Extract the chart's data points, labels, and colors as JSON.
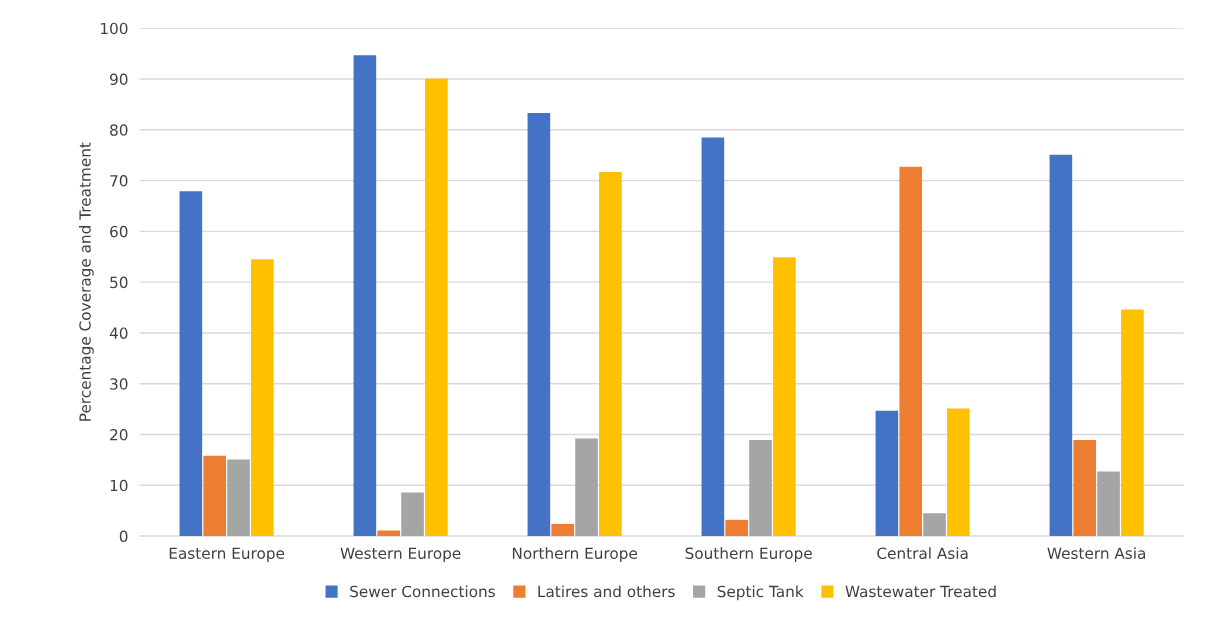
{
  "chart_data": {
    "type": "bar",
    "ylabel": "Percentage Coverage and Treatment",
    "categories": [
      "Eastern Europe",
      "Western Europe",
      "Northern Europe",
      "Southern Europe",
      "Central Asia",
      "Western Asia"
    ],
    "series": [
      {
        "name": "Sewer Connections",
        "color": "#4472c4",
        "values": [
          67.9,
          94.7,
          83.3,
          78.5,
          24.7,
          75.1
        ]
      },
      {
        "name": "Latires and others",
        "color": "#ed7d31",
        "values": [
          15.8,
          1.1,
          2.4,
          3.2,
          72.7,
          18.9
        ]
      },
      {
        "name": "Septic Tank",
        "color": "#a5a5a5",
        "values": [
          15.1,
          8.6,
          19.2,
          18.9,
          4.5,
          12.7
        ]
      },
      {
        "name": "Wastewater Treated",
        "color": "#ffc000",
        "values": [
          54.5,
          90.1,
          71.7,
          54.9,
          25.1,
          44.6
        ]
      }
    ],
    "ylim": [
      0,
      100
    ],
    "yticks": [
      0,
      10,
      20,
      30,
      40,
      50,
      60,
      70,
      80,
      90,
      100
    ],
    "grid": "y",
    "legend": "bottom"
  }
}
